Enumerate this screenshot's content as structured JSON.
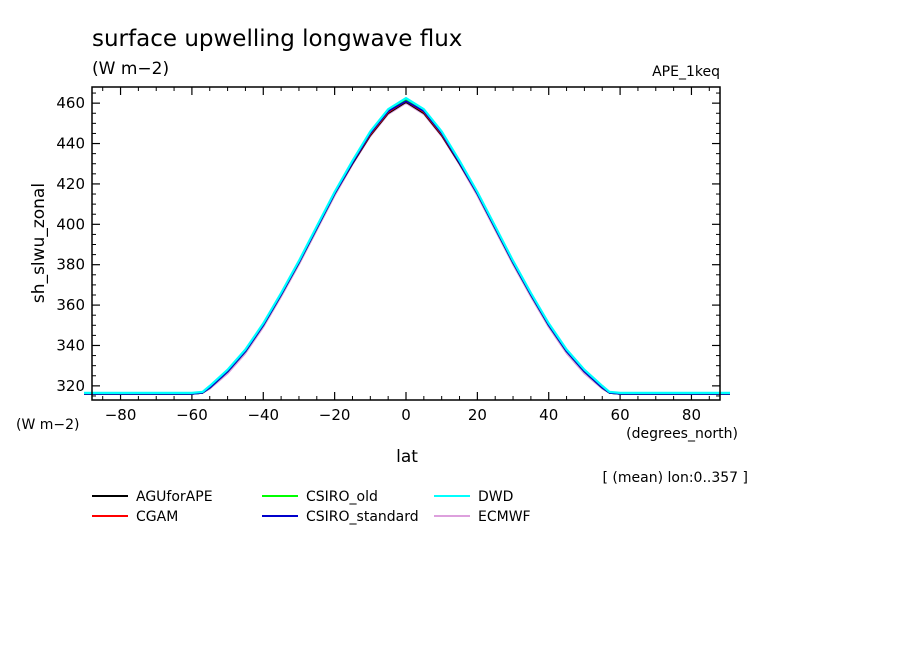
{
  "chart_data": {
    "type": "line",
    "title": "surface upwelling longwave flux",
    "title_units": "(W m−2)",
    "dataset_label": "APE_1keq",
    "ylabel": "sh_slwu_zonal",
    "y_units": "(W m−2)",
    "xlabel": "lat",
    "x_units": "(degrees_north)",
    "footnote": "[ (mean) lon:0..357 ]",
    "xlim": [
      -88,
      88
    ],
    "ylim": [
      313,
      468
    ],
    "xticks": [
      -80,
      -60,
      -40,
      -20,
      0,
      20,
      40,
      60,
      80
    ],
    "xtick_labels": [
      "−80",
      "−60",
      "−40",
      "−20",
      "0",
      "20",
      "40",
      "60",
      "80"
    ],
    "yticks": [
      320,
      340,
      360,
      380,
      400,
      420,
      440,
      460
    ],
    "ytick_labels": [
      "320",
      "340",
      "360",
      "380",
      "400",
      "420",
      "440",
      "460"
    ],
    "x": [
      -88,
      -80,
      -70,
      -60,
      -57,
      -55,
      -50,
      -45,
      -40,
      -35,
      -30,
      -25,
      -20,
      -15,
      -10,
      -5,
      0,
      5,
      10,
      15,
      20,
      25,
      30,
      35,
      40,
      45,
      50,
      55,
      57,
      60,
      70,
      80,
      88
    ],
    "series": [
      {
        "name": "AGUforAPE",
        "color": "#000000",
        "values": [
          316,
          316,
          316,
          316,
          316.5,
          319,
          327,
          337,
          350,
          365,
          381,
          398,
          415,
          430,
          444,
          455,
          460.5,
          455,
          444,
          430,
          415,
          398,
          381,
          365,
          350,
          337,
          327,
          319,
          316.5,
          316,
          316,
          316,
          316
        ]
      },
      {
        "name": "CGAM",
        "color": "#ff0000",
        "values": [
          316,
          316,
          316,
          316,
          316.5,
          319,
          327,
          337,
          350,
          365,
          381,
          398,
          415,
          430.5,
          444.5,
          455.5,
          461,
          455.5,
          444.5,
          430.5,
          415,
          398,
          381,
          365,
          350,
          337,
          327,
          319,
          316.5,
          316,
          316,
          316,
          316
        ]
      },
      {
        "name": "CSIRO_old",
        "color": "#00ff00",
        "values": [
          316,
          316,
          316,
          316,
          316.5,
          319,
          327,
          337,
          350,
          365,
          381,
          398,
          415,
          431,
          445,
          456,
          461.5,
          456,
          445,
          431,
          415,
          398,
          381,
          365,
          350,
          337,
          327,
          319,
          316.5,
          316,
          316,
          316,
          316
        ]
      },
      {
        "name": "CSIRO_standard",
        "color": "#0000cc",
        "values": [
          316,
          316,
          316,
          316,
          316.5,
          319,
          327,
          337,
          350,
          365,
          381,
          398,
          415,
          430.5,
          445,
          456,
          461,
          456,
          445,
          430.5,
          415,
          398,
          381,
          365,
          350,
          337,
          327,
          319,
          316.5,
          316,
          316,
          316,
          316
        ]
      },
      {
        "name": "DWD",
        "color": "#00ffff",
        "values": [
          316.5,
          316.5,
          316.5,
          316.5,
          317,
          320,
          328,
          338,
          351,
          366,
          382,
          399,
          416,
          431.5,
          446,
          457,
          462.5,
          457,
          446,
          431.5,
          416,
          399,
          382,
          366,
          351,
          338,
          328,
          320,
          317,
          316.5,
          316.5,
          316.5,
          316.5
        ]
      },
      {
        "name": "ECMWF",
        "color": "#dda0dd",
        "values": [
          316,
          316,
          316,
          316,
          316.5,
          318.5,
          326,
          336,
          349,
          364,
          380,
          397,
          414,
          429.5,
          443.5,
          454.5,
          460,
          454.5,
          443.5,
          429.5,
          414,
          397,
          380,
          364,
          349,
          336,
          326,
          318.5,
          316.5,
          316,
          316,
          316,
          316
        ]
      }
    ]
  }
}
